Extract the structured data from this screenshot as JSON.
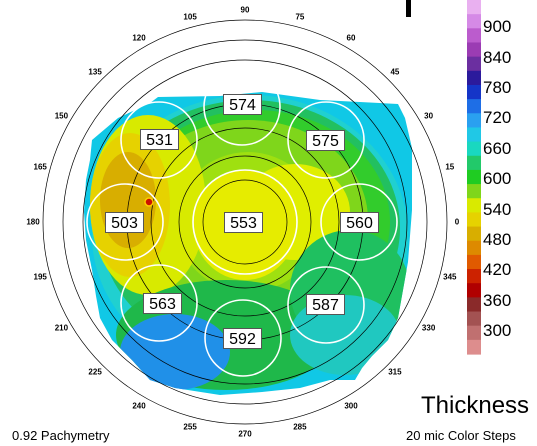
{
  "map": {
    "caption": "0.92 Pachymetry",
    "title": "Thickness",
    "subtitle": "20 mic Color Steps"
  },
  "angle_ticks": [
    "0",
    "15",
    "30",
    "45",
    "60",
    "75",
    "90",
    "105",
    "120",
    "135",
    "150",
    "165",
    "180",
    "195",
    "210",
    "225",
    "240",
    "255",
    "270",
    "285",
    "300",
    "315",
    "330",
    "345"
  ],
  "zones": [
    {
      "name": "center",
      "value": "553"
    },
    {
      "name": "superior",
      "value": "574"
    },
    {
      "name": "superior-nasal",
      "value": "575"
    },
    {
      "name": "nasal",
      "value": "560"
    },
    {
      "name": "inferior-nasal",
      "value": "587"
    },
    {
      "name": "inferior",
      "value": "592"
    },
    {
      "name": "inferior-temporal",
      "value": "563"
    },
    {
      "name": "temporal",
      "value": "503"
    },
    {
      "name": "superior-temporal",
      "value": "531"
    }
  ],
  "scale": {
    "labels": [
      "900",
      "840",
      "780",
      "720",
      "660",
      "600",
      "540",
      "480",
      "420",
      "360",
      "300"
    ],
    "colors": [
      "#e9b0f0",
      "#d58ae6",
      "#bb5ccd",
      "#9b3cb3",
      "#6b2fa0",
      "#2b1a9c",
      "#1535c8",
      "#1e6ee6",
      "#2aa0f0",
      "#20c8e6",
      "#19d8c0",
      "#22c96a",
      "#1fcc22",
      "#7fd61b",
      "#d9ea00",
      "#e6d200",
      "#d8ae00",
      "#dd8a00",
      "#e05a00",
      "#cc2200",
      "#b00000",
      "#8a2a2a",
      "#a35252",
      "#c07070",
      "#dd8d8d"
    ]
  },
  "colors": {
    "line": "#000000",
    "zone_circle": "#ffffff",
    "thinnest_marker": "#cc1100"
  }
}
